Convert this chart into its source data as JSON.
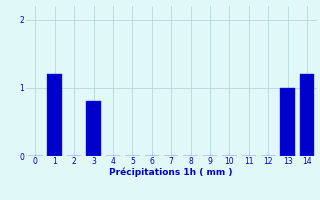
{
  "hours": [
    0,
    1,
    2,
    3,
    4,
    5,
    6,
    7,
    8,
    9,
    10,
    11,
    12,
    13,
    14
  ],
  "values": [
    0,
    1.2,
    0,
    0.8,
    0,
    0,
    0,
    0,
    0,
    0,
    0,
    0,
    0,
    1.0,
    1.2
  ],
  "bar_color": "#0000cc",
  "bar_edge_color": "#1a1aff",
  "background_color": "#e0f8f8",
  "grid_color": "#b0d0d0",
  "xlabel": "Précipitations 1h ( mm )",
  "xlabel_color": "#0000cc",
  "tick_color": "#0000cc",
  "ylim": [
    0,
    2.2
  ],
  "yticks": [
    0,
    1,
    2
  ],
  "xlim": [
    -0.5,
    14.5
  ],
  "xticks": [
    0,
    1,
    2,
    3,
    4,
    5,
    6,
    7,
    8,
    9,
    10,
    11,
    12,
    13,
    14
  ]
}
